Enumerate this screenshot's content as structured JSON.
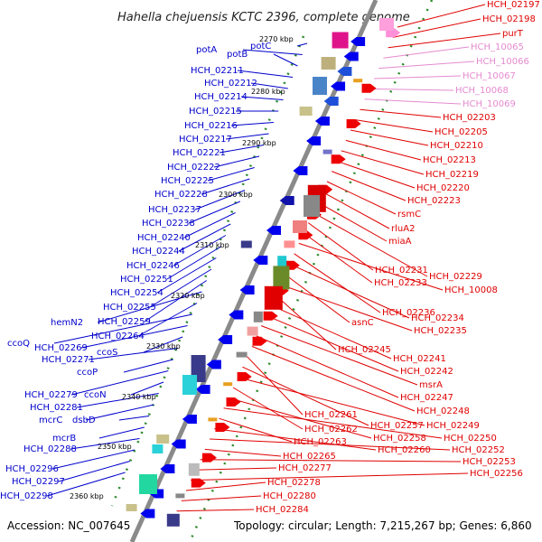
{
  "header": {
    "title": "Hahella chejuensis KCTC 2396, complete genome"
  },
  "footer": {
    "accession": "Accession: NC_007645",
    "summary": "Topology: circular; Length: 7,215,267 bp; Genes: 6,860"
  },
  "colors": {
    "minus_strand_label": "#0000cc",
    "plus_strand_label": "#e00000",
    "rna_label": "#e58ad0",
    "backbone": "#8a8a8a",
    "tick_dots": "#2a8a2a"
  },
  "scale": [
    "2270 kbp",
    "2280 kbp",
    "2290 kbp",
    "2300 kbp",
    "2310 kbp",
    "2320 kbp",
    "2330 kbp",
    "2340 kbp",
    "2350 kbp",
    "2360 kbp"
  ],
  "left_labels": [
    "potC",
    "potA",
    "potB",
    "HCH_02211",
    "HCH_02212",
    "HCH_02214",
    "HCH_02215",
    "HCH_02216",
    "HCH_02217",
    "HCH_02221",
    "HCH_02222",
    "HCH_02225",
    "HCH_02228",
    "HCH_02237",
    "HCH_02238",
    "HCH_02240",
    "HCH_02244",
    "HCH_02246",
    "HCH_02251",
    "HCH_02254",
    "HCH_02255",
    "HCH_02259",
    "hemN2",
    "HCH_02264",
    "ccoQ",
    "HCH_02269",
    "ccoS",
    "HCH_02271",
    "ccoP",
    "HCH_02279",
    "ccoN",
    "HCH_02281",
    "mcrC",
    "dsbD",
    "mcrB",
    "HCH_02288",
    "HCH_02296",
    "HCH_02297",
    "HCH_02298"
  ],
  "right_labels": [
    "HCH_02197",
    "HCH_02198",
    "purT",
    "HCH_10065",
    "HCH_10066",
    "HCH_10067",
    "HCH_10068",
    "HCH_10069",
    "HCH_02203",
    "HCH_02205",
    "HCH_02210",
    "HCH_02213",
    "HCH_02219",
    "HCH_02220",
    "HCH_02223",
    "rsmC",
    "rluA2",
    "miaA",
    "HCH_02229",
    "HCH_02231",
    "HCH_02233",
    "HCH_10008",
    "HCH_02236",
    "HCH_02234",
    "asnC",
    "HCH_02235",
    "HCH_02245",
    "HCH_02241",
    "HCH_02242",
    "msrA",
    "HCH_02247",
    "HCH_02248",
    "HCH_02261",
    "HCH_02257",
    "HCH_02249",
    "HCH_02262",
    "HCH_02258",
    "HCH_02250",
    "HCH_02263",
    "HCH_02260",
    "HCH_02252",
    "HCH_02265",
    "HCH_02253",
    "HCH_02277",
    "HCH_02256",
    "HCH_02278",
    "HCH_02280",
    "HCH_02284"
  ]
}
